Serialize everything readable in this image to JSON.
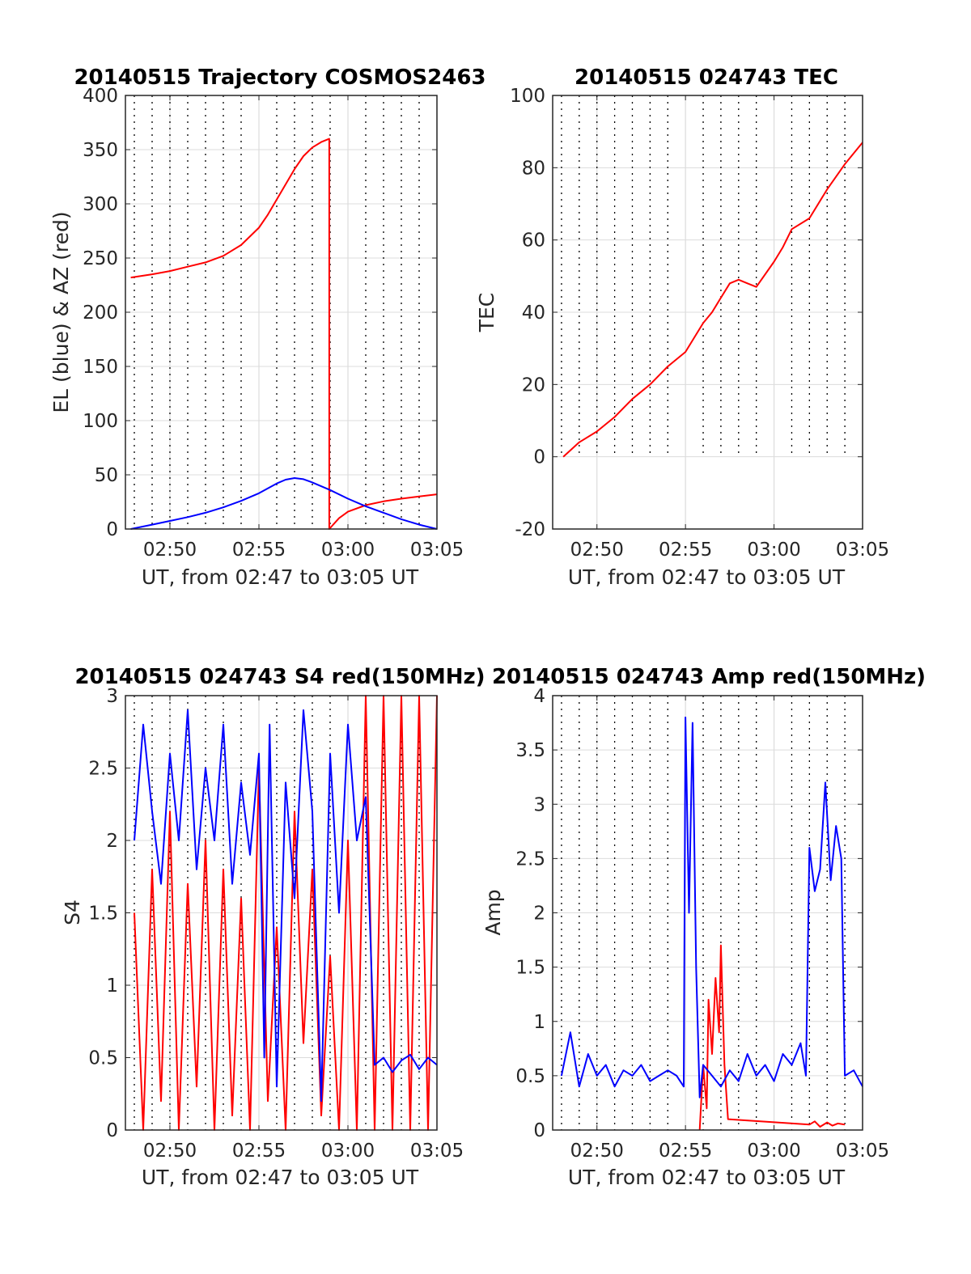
{
  "colors": {
    "red": "#ff0000",
    "blue": "#0000ff",
    "grid": "#dcdcdc",
    "vgrid": "#000000",
    "frame": "#262626"
  },
  "chart_data": [
    {
      "type": "line",
      "title": "20140515 Trajectory COSMOS2463",
      "xlabel": "UT, from 02:47 to 03:05 UT",
      "ylabel": "EL (blue) & AZ (red)",
      "xlim_minutes": [
        2.5,
        20
      ],
      "ylim": [
        0,
        400
      ],
      "yticks": [
        "0",
        "50",
        "100",
        "150",
        "200",
        "250",
        "300",
        "350",
        "400"
      ],
      "xticks": [
        {
          "m": 5,
          "label": "02:50"
        },
        {
          "m": 10,
          "label": "02:55"
        },
        {
          "m": 15,
          "label": "03:00"
        },
        {
          "m": 20,
          "label": "03:05"
        }
      ],
      "grid": true,
      "series": [
        {
          "color": "red",
          "x_minutes": [
            2.8,
            4,
            5,
            6,
            7,
            8,
            9,
            10,
            10.5,
            11,
            11.5,
            12,
            12.5,
            13,
            13.5,
            13.95,
            13.95,
            14.5,
            15,
            16,
            17,
            18,
            19,
            20
          ],
          "values": [
            232,
            235,
            238,
            242,
            246,
            252,
            262,
            278,
            290,
            304,
            318,
            332,
            344,
            352,
            357,
            360,
            0,
            10,
            16,
            22,
            25.5,
            28,
            30,
            32
          ]
        },
        {
          "color": "blue",
          "x_minutes": [
            2.8,
            4,
            5,
            6,
            7,
            8,
            9,
            10,
            10.5,
            11,
            11.5,
            12,
            12.5,
            13,
            14,
            15,
            16,
            17,
            18,
            19,
            20
          ],
          "values": [
            0,
            4,
            7.5,
            11,
            15,
            20,
            26,
            33,
            37.5,
            42,
            45.5,
            47,
            46,
            43,
            36,
            28,
            21,
            15,
            9,
            4,
            0
          ]
        }
      ]
    },
    {
      "type": "line",
      "title": "20140515 024743 TEC",
      "xlabel": "UT, from 02:47 to 03:05 UT",
      "ylabel": "TEC",
      "xlim_minutes": [
        2.5,
        20
      ],
      "ylim": [
        -20,
        100
      ],
      "yticks": [
        "-20",
        "0",
        "20",
        "40",
        "60",
        "80",
        "100"
      ],
      "xticks": [
        {
          "m": 5,
          "label": "02:50"
        },
        {
          "m": 10,
          "label": "02:55"
        },
        {
          "m": 15,
          "label": "03:00"
        },
        {
          "m": 20,
          "label": "03:05"
        }
      ],
      "grid": true,
      "series": [
        {
          "color": "red",
          "x_minutes": [
            3.1,
            4,
            5,
            6,
            7,
            8,
            9,
            10,
            11,
            11.5,
            12,
            12.5,
            13,
            13.5,
            14,
            15,
            15.5,
            16,
            17,
            18,
            19,
            20
          ],
          "values": [
            0,
            4,
            7,
            11,
            16,
            20,
            25,
            29,
            37,
            40,
            44,
            48,
            49,
            48,
            47,
            54,
            58,
            63,
            66,
            74,
            81,
            87
          ]
        }
      ]
    },
    {
      "type": "line",
      "title": "20140515 024743 S4 red(150MHz)",
      "xlabel": "UT, from 02:47 to 03:05 UT",
      "ylabel": "S4",
      "xlim_minutes": [
        2.5,
        20
      ],
      "ylim": [
        0,
        3
      ],
      "yticks": [
        "0",
        "0.5",
        "1",
        "1.5",
        "2",
        "2.5",
        "3"
      ],
      "xticks": [
        {
          "m": 5,
          "label": "02:50"
        },
        {
          "m": 10,
          "label": "02:55"
        },
        {
          "m": 15,
          "label": "03:00"
        },
        {
          "m": 20,
          "label": "03:05"
        }
      ],
      "grid": true,
      "series": [
        {
          "color": "red",
          "x_minutes": [
            3.0,
            3.5,
            4,
            4.5,
            5,
            5.5,
            6,
            6.5,
            7,
            7.5,
            8,
            8.5,
            9,
            9.5,
            10,
            10.5,
            11,
            11.5,
            12,
            12.5,
            13,
            13.5,
            14,
            14.5,
            15,
            15.5,
            16,
            16.5,
            17,
            17.5,
            18,
            18.5,
            19,
            19.5,
            20
          ],
          "values": [
            1.5,
            0,
            1.8,
            0.2,
            2.2,
            0,
            1.7,
            0.3,
            2.0,
            0,
            1.8,
            0.1,
            1.6,
            0,
            2.5,
            0.2,
            1.4,
            0,
            2.2,
            0.6,
            1.8,
            0.1,
            1.2,
            0,
            2.0,
            0,
            3.0,
            0,
            3.0,
            0,
            3.0,
            0,
            3.0,
            0,
            3.0
          ]
        },
        {
          "color": "blue",
          "x_minutes": [
            3.0,
            3.5,
            4,
            4.5,
            5,
            5.5,
            6,
            6.5,
            7,
            7.5,
            8,
            8.5,
            9,
            9.5,
            10,
            10.3,
            10.6,
            11,
            11.5,
            12,
            12.5,
            13,
            13.5,
            14,
            14.5,
            15,
            15.5,
            16,
            16.5,
            17,
            17.5,
            18,
            18.5,
            19,
            19.5,
            20
          ],
          "values": [
            2.0,
            2.8,
            2.2,
            1.7,
            2.6,
            2.0,
            2.9,
            1.8,
            2.5,
            2.0,
            2.8,
            1.7,
            2.4,
            1.9,
            2.6,
            0.5,
            2.8,
            0.3,
            2.4,
            1.6,
            2.9,
            2.2,
            0.2,
            2.6,
            1.5,
            2.8,
            2.0,
            2.3,
            0.45,
            0.5,
            0.4,
            0.48,
            0.52,
            0.42,
            0.5,
            0.45
          ]
        }
      ]
    },
    {
      "type": "line",
      "title": "20140515 024743 Amp red(150MHz)",
      "xlabel": "UT, from 02:47 to 03:05 UT",
      "ylabel": "Amp",
      "xlim_minutes": [
        2.5,
        20
      ],
      "ylim": [
        0,
        4
      ],
      "yticks": [
        "0",
        "0.5",
        "1",
        "1.5",
        "2",
        "2.5",
        "3",
        "3.5",
        "4"
      ],
      "xticks": [
        {
          "m": 5,
          "label": "02:50"
        },
        {
          "m": 10,
          "label": "02:55"
        },
        {
          "m": 15,
          "label": "03:00"
        },
        {
          "m": 20,
          "label": "03:05"
        }
      ],
      "grid": true,
      "series": [
        {
          "color": "red",
          "x_minutes": [
            10.8,
            11.0,
            11.2,
            11.3,
            11.5,
            11.7,
            11.9,
            12.0,
            12.2,
            12.4,
            17.0,
            17.3,
            17.6,
            18.0,
            18.3,
            18.6,
            19.0
          ],
          "values": [
            0,
            0.6,
            0.2,
            1.2,
            0.7,
            1.4,
            0.9,
            1.7,
            0.6,
            0.1,
            0.05,
            0.08,
            0.03,
            0.07,
            0.04,
            0.06,
            0.05
          ]
        },
        {
          "color": "blue",
          "x_minutes": [
            3.0,
            3.5,
            4.0,
            4.5,
            5.0,
            5.5,
            6.0,
            6.5,
            7.0,
            7.5,
            8.0,
            8.5,
            9.0,
            9.5,
            9.9,
            10.0,
            10.2,
            10.4,
            10.6,
            10.8,
            11.0,
            11.5,
            12.0,
            12.5,
            13.0,
            13.5,
            14.0,
            14.5,
            15.0,
            15.5,
            16.0,
            16.5,
            16.8,
            17.0,
            17.3,
            17.6,
            17.9,
            18.2,
            18.5,
            18.8,
            19.0,
            19.5,
            20.0
          ],
          "values": [
            0.5,
            0.9,
            0.4,
            0.7,
            0.5,
            0.6,
            0.4,
            0.55,
            0.5,
            0.6,
            0.45,
            0.5,
            0.55,
            0.5,
            0.4,
            3.8,
            2.0,
            3.75,
            1.5,
            0.3,
            0.6,
            0.5,
            0.4,
            0.55,
            0.45,
            0.7,
            0.5,
            0.6,
            0.45,
            0.7,
            0.6,
            0.8,
            0.5,
            2.6,
            2.2,
            2.4,
            3.2,
            2.3,
            2.8,
            2.5,
            0.5,
            0.55,
            0.4
          ]
        }
      ]
    }
  ]
}
